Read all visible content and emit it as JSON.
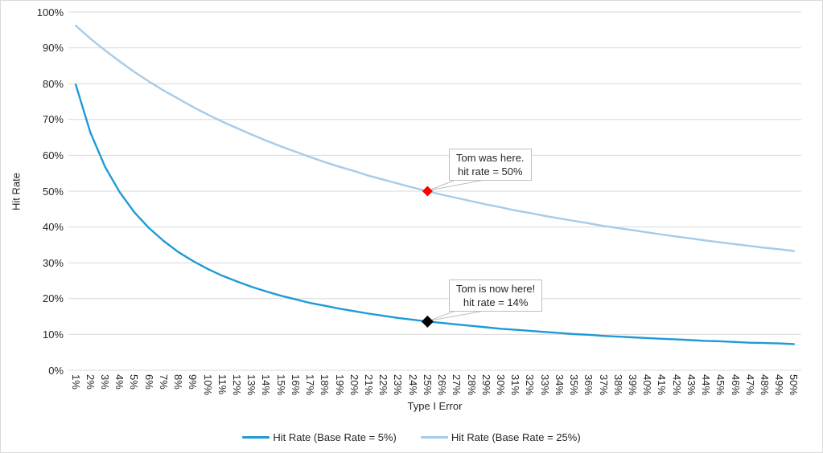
{
  "colors": {
    "grid": "#d9d9d9",
    "text": "#262626",
    "callout_border": "#bfbfbf",
    "background": "#ffffff",
    "series_dark_blue": "#1e9ad6",
    "series_light_blue": "#a7cbe8",
    "annotation_marker_red": "#ff0000",
    "annotation_marker_black": "#000000"
  },
  "chart_data": {
    "type": "line",
    "title": "",
    "xlabel": "Type I Error",
    "ylabel": "Hit Rate",
    "ylim": [
      0,
      100
    ],
    "grid": "horizontal",
    "legend_position": "bottom",
    "y_ticks": [
      "0%",
      "10%",
      "20%",
      "30%",
      "40%",
      "50%",
      "60%",
      "70%",
      "80%",
      "90%",
      "100%"
    ],
    "x_categories": [
      "1%",
      "2%",
      "3%",
      "4%",
      "5%",
      "6%",
      "7%",
      "8%",
      "9%",
      "10%",
      "11%",
      "12%",
      "13%",
      "14%",
      "15%",
      "16%",
      "17%",
      "18%",
      "19%",
      "20%",
      "21%",
      "22%",
      "23%",
      "24%",
      "25%",
      "26%",
      "27%",
      "28%",
      "29%",
      "30%",
      "31%",
      "32%",
      "33%",
      "34%",
      "35%",
      "36%",
      "37%",
      "38%",
      "39%",
      "40%",
      "41%",
      "42%",
      "43%",
      "44%",
      "45%",
      "46%",
      "47%",
      "48%",
      "49%",
      "50%"
    ],
    "series": [
      {
        "name": "Hit Rate (Base Rate = 5%)",
        "color": "#1e9ad6",
        "values": [
          79.8,
          66.4,
          56.8,
          49.7,
          44.1,
          39.7,
          36.1,
          33.0,
          30.5,
          28.3,
          26.4,
          24.8,
          23.3,
          22.0,
          20.8,
          19.8,
          18.8,
          18.0,
          17.2,
          16.5,
          15.8,
          15.2,
          14.6,
          14.1,
          13.6,
          13.2,
          12.8,
          12.4,
          12.0,
          11.6,
          11.3,
          11.0,
          10.7,
          10.4,
          10.1,
          9.9,
          9.6,
          9.4,
          9.2,
          9.0,
          8.8,
          8.6,
          8.4,
          8.2,
          8.1,
          7.9,
          7.7,
          7.6,
          7.5,
          7.3
        ]
      },
      {
        "name": "Hit Rate (Base Rate = 25%)",
        "color": "#a7cbe8",
        "values": [
          96.2,
          92.6,
          89.3,
          86.2,
          83.3,
          80.6,
          78.1,
          75.8,
          73.5,
          71.4,
          69.4,
          67.6,
          65.8,
          64.1,
          62.5,
          61.0,
          59.5,
          58.1,
          56.8,
          55.6,
          54.3,
          53.2,
          52.1,
          51.0,
          50.0,
          49.0,
          48.1,
          47.2,
          46.3,
          45.5,
          44.6,
          43.9,
          43.1,
          42.4,
          41.7,
          41.0,
          40.3,
          39.7,
          39.1,
          38.5,
          37.9,
          37.3,
          36.8,
          36.2,
          35.7,
          35.2,
          34.7,
          34.2,
          33.8,
          33.3
        ]
      }
    ],
    "annotations": [
      {
        "text_line1": "Tom was here.",
        "text_line2": "hit rate = 50%",
        "x": "25%",
        "y": 50,
        "marker": "diamond",
        "marker_color": "#ff0000",
        "marker_size": 6.5
      },
      {
        "text_line1": "Tom is now here!",
        "text_line2": "hit rate = 14%",
        "x": "25%",
        "y": 13.6,
        "marker": "diamond",
        "marker_color": "#000000",
        "marker_size": 7.5
      }
    ]
  }
}
